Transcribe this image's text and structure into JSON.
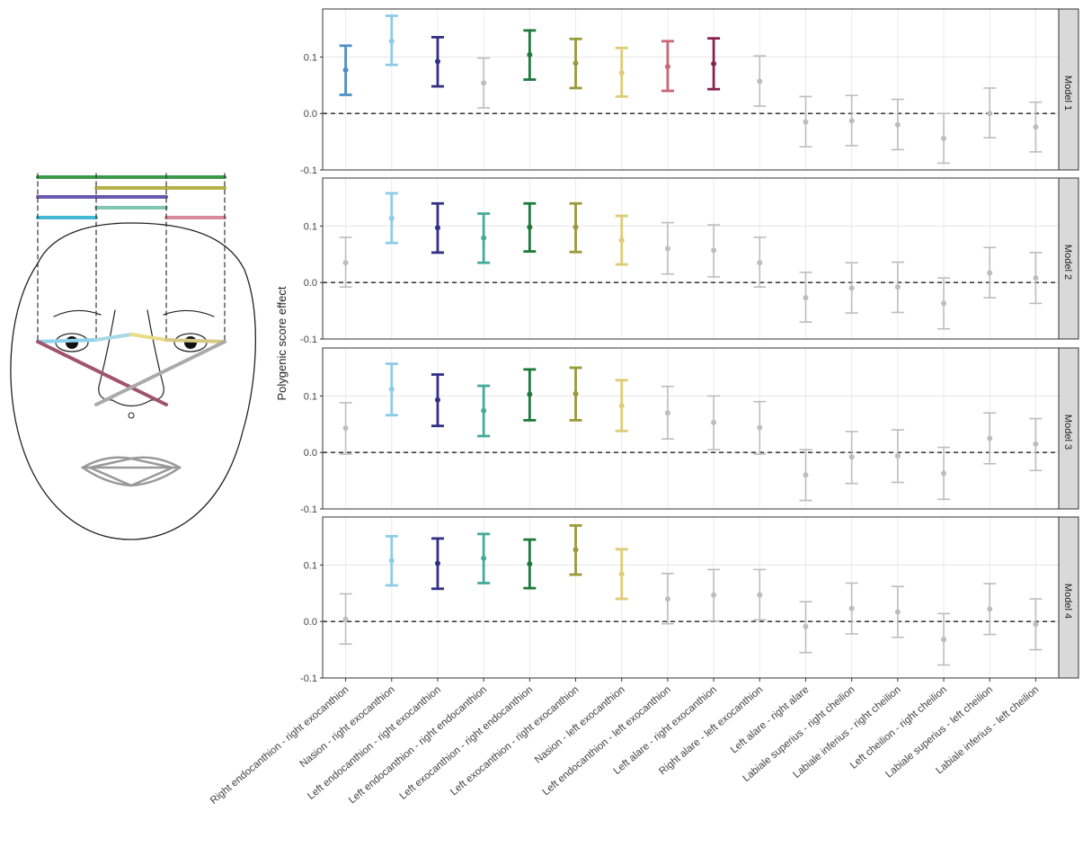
{
  "chart_data": {
    "type": "errorbar",
    "ylabel": "Polygenic score effect",
    "categories": [
      "Right endocanthion - right exocanthion",
      "Nasion - right exocanthion",
      "Left endocanthion - right exocanthion",
      "Left endocanthion - right endocanthion",
      "Left exocanthion - right endocanthion",
      "Left exocanthion - right exocanthion",
      "Nasion - left exocanthion",
      "Left endocanthion - left exocanthion",
      "Left alare - right exocanthion",
      "Right alare - left exocanthion",
      "Left alare - right alare",
      "Labiale superius - right cheilion",
      "Labiale inferius - right cheilion",
      "Left cheilion - right cheilion",
      "Labiale superius - left cheilion",
      "Labiale inferius - left cheilion"
    ],
    "ylim": [
      -0.1,
      0.185
    ],
    "yticks": [
      -0.1,
      {
        "value": 0,
        "label": "0.0"
      },
      0.1
    ],
    "grid": true,
    "reference_line": 0,
    "muted_color": "#bdbdbd",
    "panels": [
      {
        "label": "Model 1",
        "values": [
          0.077,
          0.128,
          0.092,
          0.054,
          0.104,
          0.089,
          0.072,
          0.083,
          0.088,
          0.057,
          -0.015,
          -0.013,
          -0.02,
          -0.044,
          0.0,
          -0.024
        ],
        "lower": [
          0.033,
          0.086,
          0.048,
          0.01,
          0.06,
          0.045,
          0.03,
          0.04,
          0.043,
          0.013,
          -0.059,
          -0.057,
          -0.064,
          -0.088,
          -0.043,
          -0.068
        ],
        "upper": [
          0.12,
          0.173,
          0.135,
          0.098,
          0.147,
          0.132,
          0.116,
          0.128,
          0.133,
          0.102,
          0.03,
          0.032,
          0.025,
          0.0,
          0.045,
          0.02
        ],
        "colors": [
          "#4f90c5",
          "#8ecbe6",
          "#332f85",
          "#bdbdbd",
          "#1e7a3c",
          "#9a9a3a",
          "#ddcc77",
          "#cc6677",
          "#882255",
          "#bdbdbd",
          "#bdbdbd",
          "#bdbdbd",
          "#bdbdbd",
          "#bdbdbd",
          "#bdbdbd",
          "#bdbdbd"
        ]
      },
      {
        "label": "Model 2",
        "values": [
          0.035,
          0.114,
          0.097,
          0.079,
          0.098,
          0.098,
          0.075,
          0.06,
          0.057,
          0.035,
          -0.027,
          -0.01,
          -0.008,
          -0.037,
          0.017,
          0.008
        ],
        "lower": [
          -0.008,
          0.07,
          0.053,
          0.035,
          0.055,
          0.054,
          0.032,
          0.015,
          0.01,
          -0.008,
          -0.07,
          -0.054,
          -0.053,
          -0.082,
          -0.027,
          -0.037
        ],
        "upper": [
          0.08,
          0.158,
          0.14,
          0.122,
          0.14,
          0.14,
          0.118,
          0.106,
          0.102,
          0.08,
          0.018,
          0.035,
          0.036,
          0.008,
          0.062,
          0.053
        ],
        "colors": [
          "#bdbdbd",
          "#8ecbe6",
          "#332f85",
          "#44aa99",
          "#1e7a3c",
          "#9a9a3a",
          "#ddcc77",
          "#bdbdbd",
          "#bdbdbd",
          "#bdbdbd",
          "#bdbdbd",
          "#bdbdbd",
          "#bdbdbd",
          "#bdbdbd",
          "#bdbdbd",
          "#bdbdbd"
        ]
      },
      {
        "label": "Model 3",
        "values": [
          0.043,
          0.112,
          0.093,
          0.074,
          0.103,
          0.104,
          0.083,
          0.07,
          0.053,
          0.044,
          -0.04,
          -0.008,
          -0.006,
          -0.037,
          0.025,
          0.015
        ],
        "lower": [
          -0.003,
          0.066,
          0.047,
          0.029,
          0.057,
          0.057,
          0.038,
          0.024,
          0.005,
          -0.003,
          -0.085,
          -0.055,
          -0.053,
          -0.083,
          -0.02,
          -0.032
        ],
        "upper": [
          0.088,
          0.157,
          0.138,
          0.118,
          0.147,
          0.15,
          0.128,
          0.117,
          0.1,
          0.09,
          0.005,
          0.037,
          0.04,
          0.009,
          0.07,
          0.06
        ],
        "colors": [
          "#bdbdbd",
          "#8ecbe6",
          "#332f85",
          "#44aa99",
          "#1e7a3c",
          "#9a9a3a",
          "#ddcc77",
          "#bdbdbd",
          "#bdbdbd",
          "#bdbdbd",
          "#bdbdbd",
          "#bdbdbd",
          "#bdbdbd",
          "#bdbdbd",
          "#bdbdbd",
          "#bdbdbd"
        ]
      },
      {
        "label": "Model 4",
        "values": [
          0.004,
          0.108,
          0.103,
          0.112,
          0.102,
          0.127,
          0.084,
          0.04,
          0.047,
          0.047,
          -0.009,
          0.023,
          0.017,
          -0.032,
          0.022,
          -0.005
        ],
        "lower": [
          -0.04,
          0.064,
          0.058,
          0.068,
          0.059,
          0.083,
          0.04,
          -0.004,
          0.001,
          0.003,
          -0.055,
          -0.022,
          -0.028,
          -0.077,
          -0.023,
          -0.05
        ],
        "upper": [
          0.049,
          0.151,
          0.147,
          0.155,
          0.145,
          0.17,
          0.128,
          0.085,
          0.092,
          0.092,
          0.035,
          0.068,
          0.062,
          0.014,
          0.067,
          0.04
        ],
        "colors": [
          "#bdbdbd",
          "#8ecbe6",
          "#332f85",
          "#44aa99",
          "#1e7a3c",
          "#9a9a3a",
          "#ddcc77",
          "#bdbdbd",
          "#bdbdbd",
          "#bdbdbd",
          "#bdbdbd",
          "#bdbdbd",
          "#bdbdbd",
          "#bdbdbd",
          "#bdbdbd",
          "#bdbdbd"
        ]
      }
    ]
  }
}
